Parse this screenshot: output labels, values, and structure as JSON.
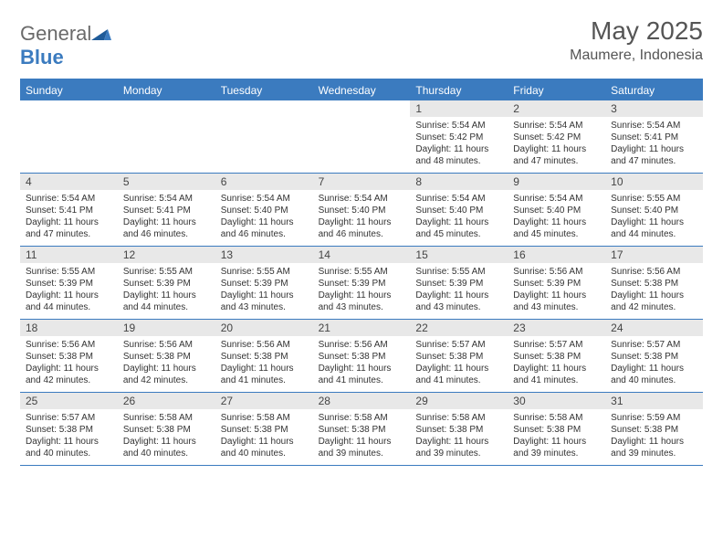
{
  "logo": {
    "text1": "General",
    "text2": "Blue"
  },
  "title": "May 2025",
  "location": "Maumere, Indonesia",
  "colors": {
    "header_bg": "#3b7bbf",
    "header_text": "#ffffff",
    "daynum_bg": "#e8e8e8",
    "border": "#3b7bbf",
    "text": "#333333",
    "logo_gray": "#6a6a6a",
    "logo_blue": "#3b7bbf"
  },
  "typography": {
    "title_fontsize": 28,
    "location_fontsize": 16,
    "dayhead_fontsize": 12,
    "daynum_fontsize": 12,
    "data_fontsize": 10
  },
  "day_labels": [
    "Sunday",
    "Monday",
    "Tuesday",
    "Wednesday",
    "Thursday",
    "Friday",
    "Saturday"
  ],
  "weeks": [
    [
      {
        "n": "",
        "sr": "",
        "ss": "",
        "dl": ""
      },
      {
        "n": "",
        "sr": "",
        "ss": "",
        "dl": ""
      },
      {
        "n": "",
        "sr": "",
        "ss": "",
        "dl": ""
      },
      {
        "n": "",
        "sr": "",
        "ss": "",
        "dl": ""
      },
      {
        "n": "1",
        "sr": "Sunrise: 5:54 AM",
        "ss": "Sunset: 5:42 PM",
        "dl": "Daylight: 11 hours and 48 minutes."
      },
      {
        "n": "2",
        "sr": "Sunrise: 5:54 AM",
        "ss": "Sunset: 5:42 PM",
        "dl": "Daylight: 11 hours and 47 minutes."
      },
      {
        "n": "3",
        "sr": "Sunrise: 5:54 AM",
        "ss": "Sunset: 5:41 PM",
        "dl": "Daylight: 11 hours and 47 minutes."
      }
    ],
    [
      {
        "n": "4",
        "sr": "Sunrise: 5:54 AM",
        "ss": "Sunset: 5:41 PM",
        "dl": "Daylight: 11 hours and 47 minutes."
      },
      {
        "n": "5",
        "sr": "Sunrise: 5:54 AM",
        "ss": "Sunset: 5:41 PM",
        "dl": "Daylight: 11 hours and 46 minutes."
      },
      {
        "n": "6",
        "sr": "Sunrise: 5:54 AM",
        "ss": "Sunset: 5:40 PM",
        "dl": "Daylight: 11 hours and 46 minutes."
      },
      {
        "n": "7",
        "sr": "Sunrise: 5:54 AM",
        "ss": "Sunset: 5:40 PM",
        "dl": "Daylight: 11 hours and 46 minutes."
      },
      {
        "n": "8",
        "sr": "Sunrise: 5:54 AM",
        "ss": "Sunset: 5:40 PM",
        "dl": "Daylight: 11 hours and 45 minutes."
      },
      {
        "n": "9",
        "sr": "Sunrise: 5:54 AM",
        "ss": "Sunset: 5:40 PM",
        "dl": "Daylight: 11 hours and 45 minutes."
      },
      {
        "n": "10",
        "sr": "Sunrise: 5:55 AM",
        "ss": "Sunset: 5:40 PM",
        "dl": "Daylight: 11 hours and 44 minutes."
      }
    ],
    [
      {
        "n": "11",
        "sr": "Sunrise: 5:55 AM",
        "ss": "Sunset: 5:39 PM",
        "dl": "Daylight: 11 hours and 44 minutes."
      },
      {
        "n": "12",
        "sr": "Sunrise: 5:55 AM",
        "ss": "Sunset: 5:39 PM",
        "dl": "Daylight: 11 hours and 44 minutes."
      },
      {
        "n": "13",
        "sr": "Sunrise: 5:55 AM",
        "ss": "Sunset: 5:39 PM",
        "dl": "Daylight: 11 hours and 43 minutes."
      },
      {
        "n": "14",
        "sr": "Sunrise: 5:55 AM",
        "ss": "Sunset: 5:39 PM",
        "dl": "Daylight: 11 hours and 43 minutes."
      },
      {
        "n": "15",
        "sr": "Sunrise: 5:55 AM",
        "ss": "Sunset: 5:39 PM",
        "dl": "Daylight: 11 hours and 43 minutes."
      },
      {
        "n": "16",
        "sr": "Sunrise: 5:56 AM",
        "ss": "Sunset: 5:39 PM",
        "dl": "Daylight: 11 hours and 43 minutes."
      },
      {
        "n": "17",
        "sr": "Sunrise: 5:56 AM",
        "ss": "Sunset: 5:38 PM",
        "dl": "Daylight: 11 hours and 42 minutes."
      }
    ],
    [
      {
        "n": "18",
        "sr": "Sunrise: 5:56 AM",
        "ss": "Sunset: 5:38 PM",
        "dl": "Daylight: 11 hours and 42 minutes."
      },
      {
        "n": "19",
        "sr": "Sunrise: 5:56 AM",
        "ss": "Sunset: 5:38 PM",
        "dl": "Daylight: 11 hours and 42 minutes."
      },
      {
        "n": "20",
        "sr": "Sunrise: 5:56 AM",
        "ss": "Sunset: 5:38 PM",
        "dl": "Daylight: 11 hours and 41 minutes."
      },
      {
        "n": "21",
        "sr": "Sunrise: 5:56 AM",
        "ss": "Sunset: 5:38 PM",
        "dl": "Daylight: 11 hours and 41 minutes."
      },
      {
        "n": "22",
        "sr": "Sunrise: 5:57 AM",
        "ss": "Sunset: 5:38 PM",
        "dl": "Daylight: 11 hours and 41 minutes."
      },
      {
        "n": "23",
        "sr": "Sunrise: 5:57 AM",
        "ss": "Sunset: 5:38 PM",
        "dl": "Daylight: 11 hours and 41 minutes."
      },
      {
        "n": "24",
        "sr": "Sunrise: 5:57 AM",
        "ss": "Sunset: 5:38 PM",
        "dl": "Daylight: 11 hours and 40 minutes."
      }
    ],
    [
      {
        "n": "25",
        "sr": "Sunrise: 5:57 AM",
        "ss": "Sunset: 5:38 PM",
        "dl": "Daylight: 11 hours and 40 minutes."
      },
      {
        "n": "26",
        "sr": "Sunrise: 5:58 AM",
        "ss": "Sunset: 5:38 PM",
        "dl": "Daylight: 11 hours and 40 minutes."
      },
      {
        "n": "27",
        "sr": "Sunrise: 5:58 AM",
        "ss": "Sunset: 5:38 PM",
        "dl": "Daylight: 11 hours and 40 minutes."
      },
      {
        "n": "28",
        "sr": "Sunrise: 5:58 AM",
        "ss": "Sunset: 5:38 PM",
        "dl": "Daylight: 11 hours and 39 minutes."
      },
      {
        "n": "29",
        "sr": "Sunrise: 5:58 AM",
        "ss": "Sunset: 5:38 PM",
        "dl": "Daylight: 11 hours and 39 minutes."
      },
      {
        "n": "30",
        "sr": "Sunrise: 5:58 AM",
        "ss": "Sunset: 5:38 PM",
        "dl": "Daylight: 11 hours and 39 minutes."
      },
      {
        "n": "31",
        "sr": "Sunrise: 5:59 AM",
        "ss": "Sunset: 5:38 PM",
        "dl": "Daylight: 11 hours and 39 minutes."
      }
    ]
  ]
}
